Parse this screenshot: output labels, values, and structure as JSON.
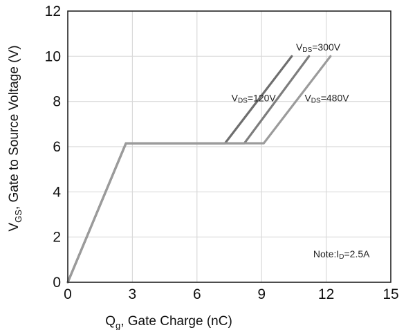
{
  "chart_data": {
    "type": "line",
    "xlabel": {
      "main": "Q",
      "sub": "g",
      "rest": ", Gate Charge (nC)"
    },
    "ylabel": {
      "main": "V",
      "sub": "GS",
      "rest": ", Gate to Source Voltage (V)"
    },
    "xlim": [
      0,
      15
    ],
    "ylim": [
      0,
      12
    ],
    "x_ticks": [
      0,
      3,
      6,
      9,
      12,
      15
    ],
    "y_ticks": [
      0,
      2,
      4,
      6,
      8,
      10,
      12
    ],
    "grid": true,
    "series": [
      {
        "name": "VDS=120V",
        "color": "#6e6e6e",
        "points": [
          [
            0,
            0
          ],
          [
            2.7,
            6.15
          ],
          [
            7.3,
            6.15
          ],
          [
            10.4,
            10.0
          ]
        ]
      },
      {
        "name": "VDS=300V",
        "color": "#7d7d7d",
        "points": [
          [
            0,
            0
          ],
          [
            2.7,
            6.15
          ],
          [
            8.2,
            6.15
          ],
          [
            11.2,
            10.0
          ]
        ]
      },
      {
        "name": "VDS=480V",
        "color": "#9b9b9b",
        "points": [
          [
            0,
            0
          ],
          [
            2.7,
            6.15
          ],
          [
            9.1,
            6.15
          ],
          [
            12.2,
            10.0
          ]
        ]
      }
    ],
    "annotations": [
      {
        "pre": "V",
        "sub": "DS",
        "post": "=300V",
        "x": 10.6,
        "y": 10.25
      },
      {
        "pre": "V",
        "sub": "DS",
        "post": "=120V",
        "x": 7.6,
        "y": 8.0
      },
      {
        "pre": "V",
        "sub": "DS",
        "post": "=480V",
        "x": 11.0,
        "y": 8.0
      },
      {
        "pre": "Note:I",
        "sub": "D",
        "post": "=2.5A",
        "x": 11.4,
        "y": 1.1
      }
    ]
  }
}
